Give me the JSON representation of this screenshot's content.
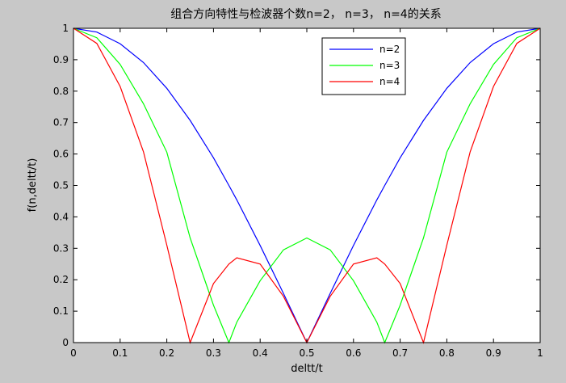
{
  "chart_data": {
    "type": "line",
    "title": "组合方向特性与检波器个数n=2， n=3， n=4的关系",
    "xlabel": "deltt/t",
    "ylabel": "f(n,deltt/t)",
    "xlim": [
      0,
      1
    ],
    "ylim": [
      0,
      1
    ],
    "xticks": [
      "0",
      "0.1",
      "0.2",
      "0.3",
      "0.4",
      "0.5",
      "0.6",
      "0.7",
      "0.8",
      "0.9",
      "1"
    ],
    "yticks": [
      "0",
      "0.1",
      "0.2",
      "0.3",
      "0.4",
      "0.5",
      "0.6",
      "0.7",
      "0.8",
      "0.9",
      "1"
    ],
    "grid": false,
    "legend_position": "top-right",
    "x": [
      0,
      0.05,
      0.1,
      0.15,
      0.2,
      0.25,
      0.3,
      0.333,
      0.35,
      0.4,
      0.45,
      0.5,
      0.55,
      0.6,
      0.65,
      0.667,
      0.7,
      0.75,
      0.8,
      0.85,
      0.9,
      0.95,
      1
    ],
    "series": [
      {
        "name": "n=2",
        "color": "#0000ff",
        "values": [
          1,
          0.988,
          0.951,
          0.891,
          0.809,
          0.707,
          0.588,
          0.5,
          0.454,
          0.309,
          0.156,
          0,
          0.156,
          0.309,
          0.454,
          0.5,
          0.588,
          0.707,
          0.809,
          0.891,
          0.951,
          0.988,
          1
        ]
      },
      {
        "name": "n=3",
        "color": "#00ff00",
        "values": [
          1,
          0.97,
          0.885,
          0.76,
          0.606,
          0.333,
          0.119,
          0,
          0.065,
          0.197,
          0.295,
          0.333,
          0.295,
          0.197,
          0.065,
          0,
          0.119,
          0.333,
          0.606,
          0.76,
          0.885,
          0.97,
          1
        ]
      },
      {
        "name": "n=4",
        "color": "#ff0000",
        "values": [
          1,
          0.952,
          0.815,
          0.607,
          0.31,
          0,
          0.188,
          0.25,
          0.27,
          0.25,
          0.147,
          0,
          0.147,
          0.25,
          0.27,
          0.25,
          0.188,
          0,
          0.31,
          0.607,
          0.815,
          0.952,
          1
        ]
      }
    ]
  }
}
